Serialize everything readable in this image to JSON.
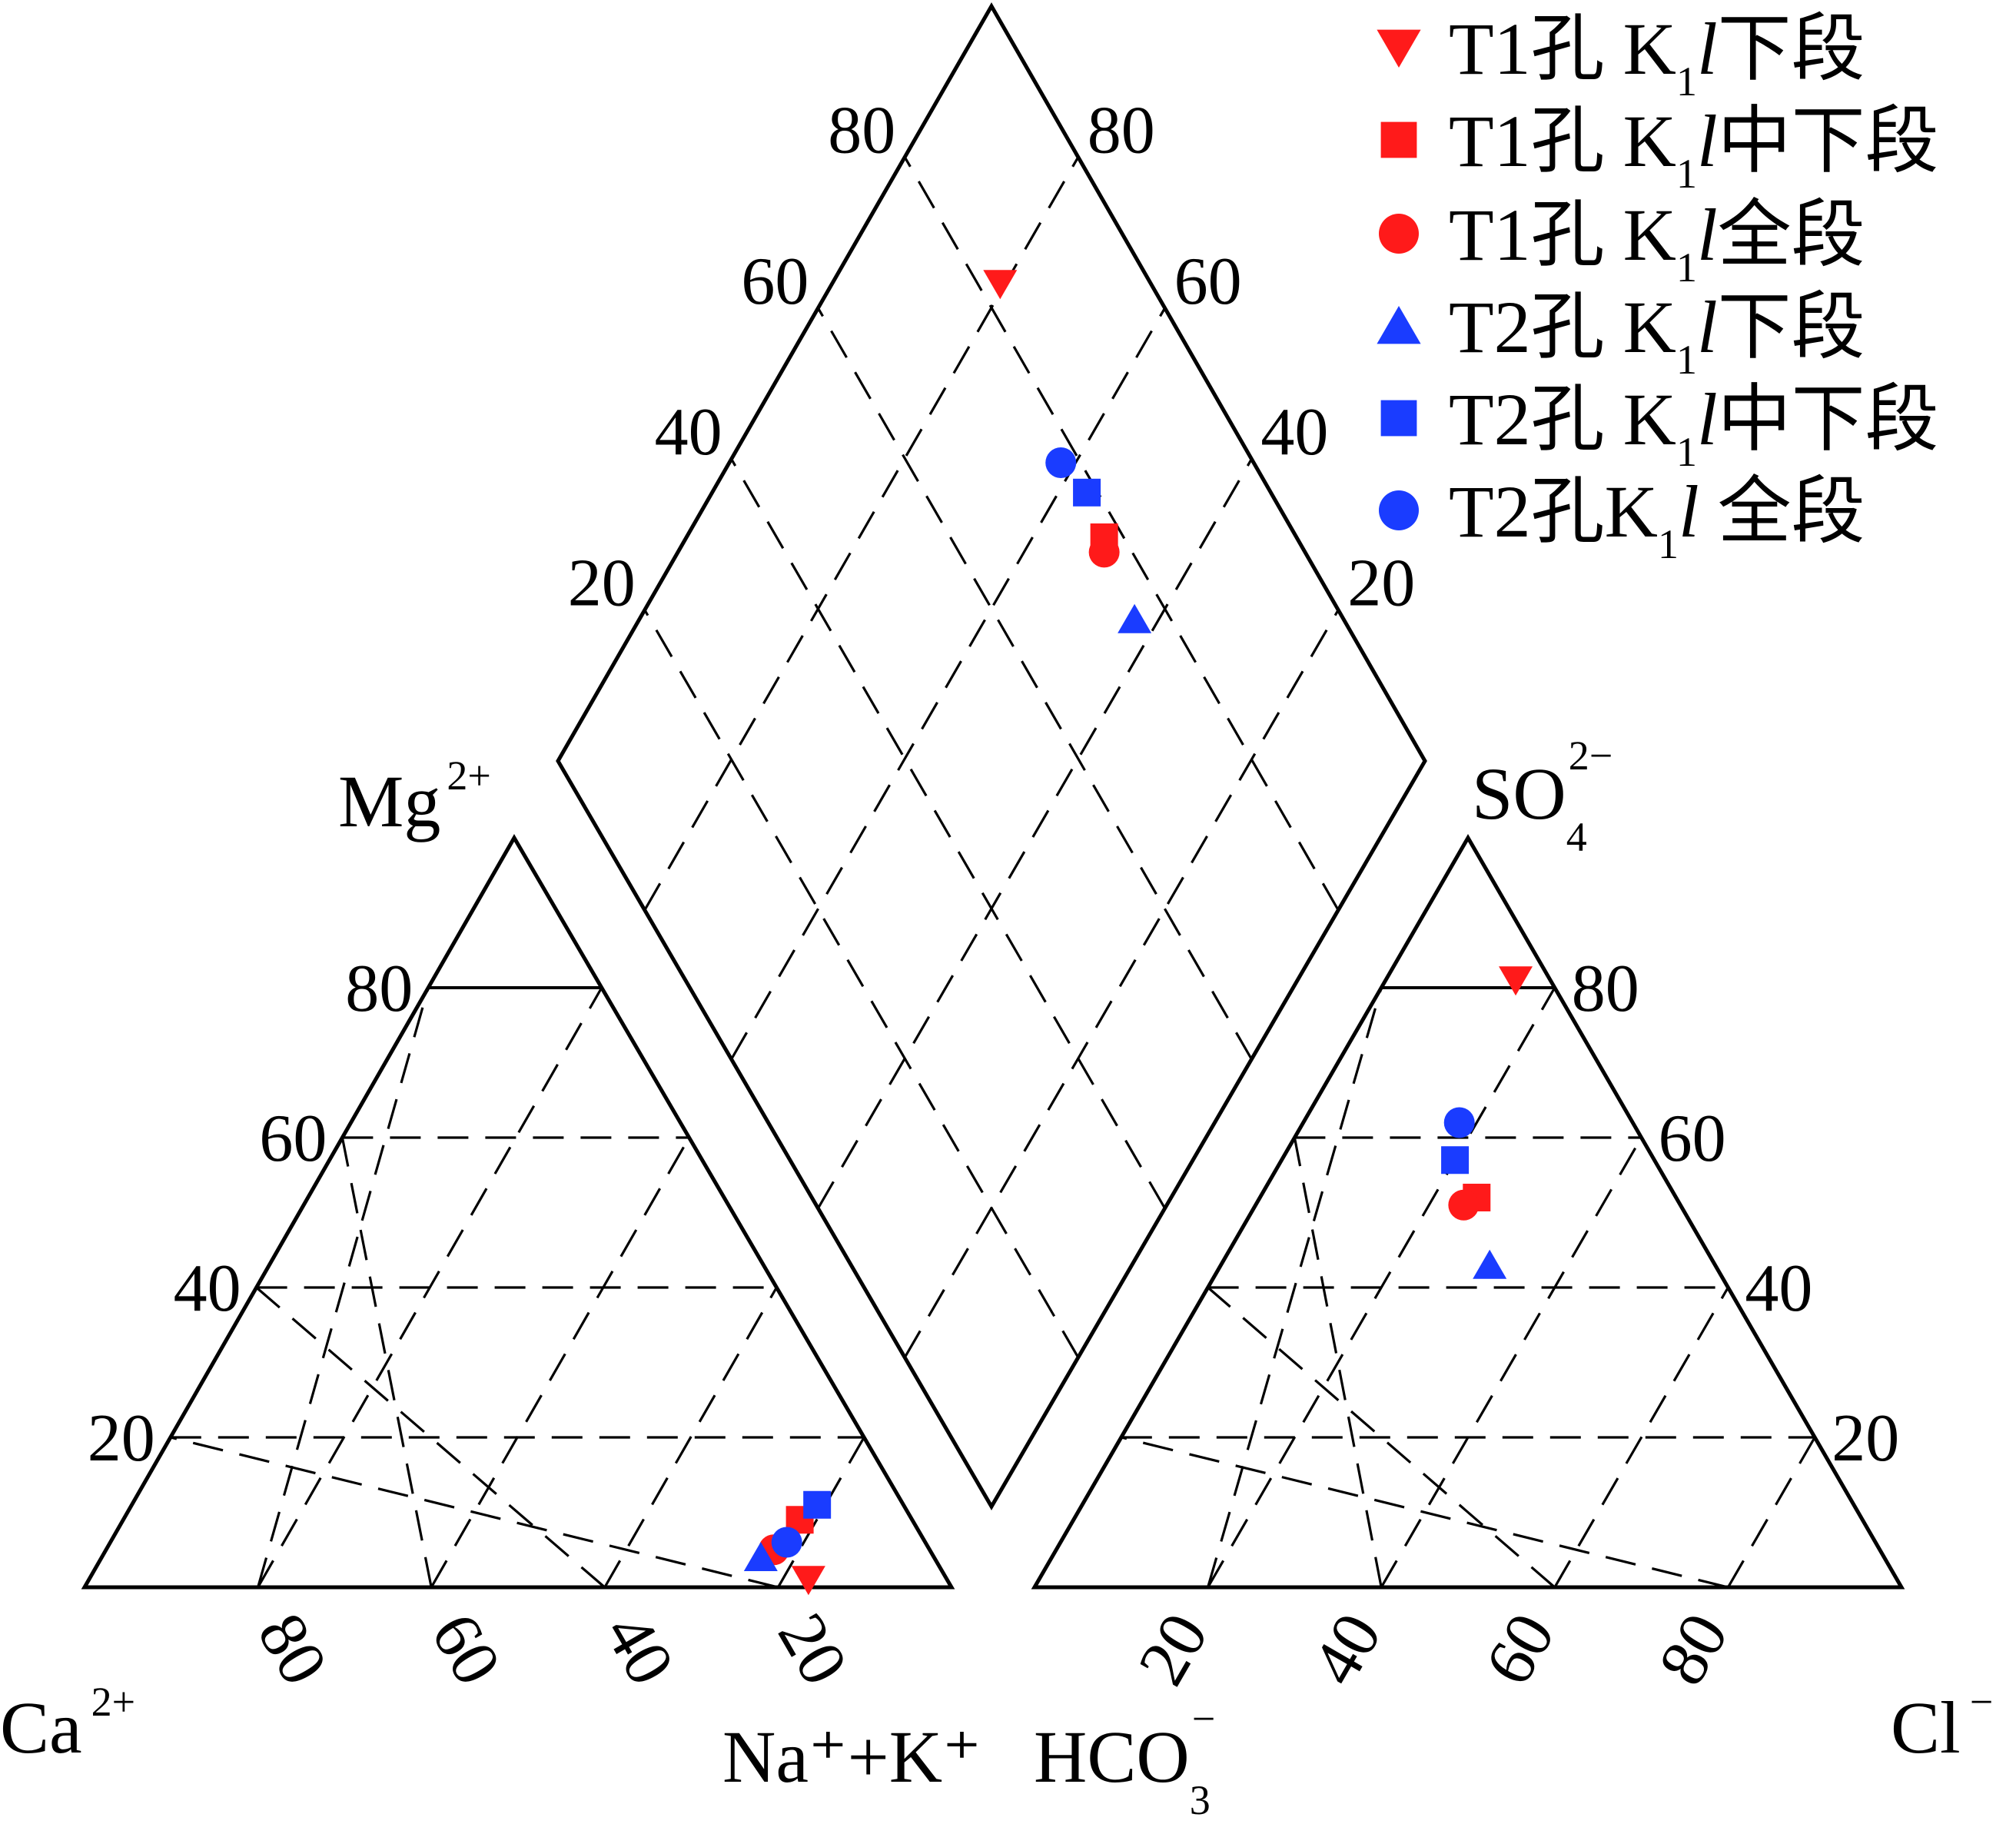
{
  "diagram": {
    "type": "piper",
    "colors": {
      "T1": "#ff1a1a",
      "T2": "#1a3cff",
      "line": "#000000"
    },
    "ticks": [
      "20",
      "40",
      "60",
      "80"
    ],
    "labels": {
      "mg": {
        "base": "Mg",
        "sup": "2+"
      },
      "ca": {
        "base": "Ca",
        "sup": "2+"
      },
      "nak": "Na⁺+K⁺",
      "hco3": {
        "base": "HCO",
        "sub": "3",
        "sup": "−"
      },
      "so4": {
        "base": "SO",
        "sub": "4",
        "sup": "2−"
      },
      "cl": {
        "base": "Cl",
        "sup": "−"
      }
    },
    "legend": [
      {
        "marker": "triangle-down",
        "color": "#ff1a1a",
        "prefix": "T1孔 K",
        "sub": "1",
        "ital": "l",
        "suffix": "下段"
      },
      {
        "marker": "square",
        "color": "#ff1a1a",
        "prefix": "T1孔 K",
        "sub": "1",
        "ital": "l",
        "suffix": "中下段"
      },
      {
        "marker": "circle",
        "color": "#ff1a1a",
        "prefix": "T1孔 K",
        "sub": "1",
        "ital": "l",
        "suffix": "全段"
      },
      {
        "marker": "triangle-up",
        "color": "#1a3cff",
        "prefix": "T2孔 K",
        "sub": "1",
        "ital": "l",
        "suffix": "下段"
      },
      {
        "marker": "square",
        "color": "#1a3cff",
        "prefix": "T2孔 K",
        "sub": "1",
        "ital": "l",
        "suffix": "中下段"
      },
      {
        "marker": "circle",
        "color": "#1a3cff",
        "prefix": "T2孔K",
        "sub": "1",
        "ital": "l",
        "suffix": " 全段"
      }
    ],
    "samples": [
      {
        "series": 0,
        "cation": {
          "mg": 1,
          "nak": 83
        },
        "anion": {
          "so4": 81,
          "cl": 15
        }
      },
      {
        "series": 1,
        "cation": {
          "mg": 9,
          "nak": 78
        },
        "anion": {
          "so4": 52,
          "cl": 25
        }
      },
      {
        "series": 2,
        "cation": {
          "mg": 5,
          "nak": 77
        },
        "anion": {
          "so4": 51,
          "cl": 24
        }
      },
      {
        "series": 3,
        "cation": {
          "mg": 4,
          "nak": 76
        },
        "anion": {
          "so4": 43,
          "cl": 31
        }
      },
      {
        "series": 4,
        "cation": {
          "mg": 11,
          "nak": 79
        },
        "anion": {
          "so4": 57,
          "cl": 20
        }
      },
      {
        "series": 5,
        "cation": {
          "mg": 6,
          "nak": 78
        },
        "anion": {
          "so4": 62,
          "cl": 18
        }
      }
    ]
  }
}
